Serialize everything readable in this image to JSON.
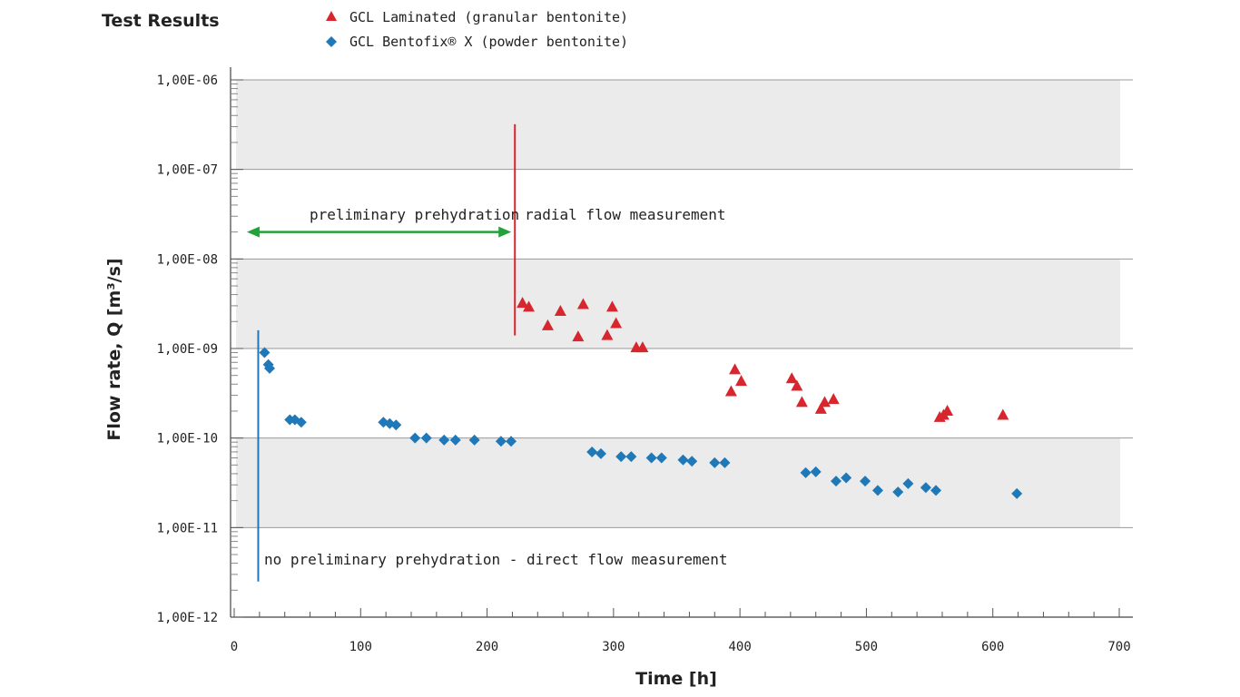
{
  "chart_data": {
    "type": "scatter",
    "title": "Test Results",
    "xlabel": "Time [h]",
    "ylabel": "Flow rate, Q [m³/s]",
    "xlim": [
      0,
      700
    ],
    "ylim_log10": [
      -12,
      -6
    ],
    "x_ticks": [
      0,
      100,
      200,
      300,
      400,
      500,
      600,
      700
    ],
    "y_ticks": [
      {
        "exp": -6,
        "label": "1,00E-06"
      },
      {
        "exp": -7,
        "label": "1,00E-07"
      },
      {
        "exp": -8,
        "label": "1,00E-08"
      },
      {
        "exp": -9,
        "label": "1,00E-09"
      },
      {
        "exp": -10,
        "label": "1,00E-10"
      },
      {
        "exp": -11,
        "label": "1,00E-11"
      },
      {
        "exp": -12,
        "label": "1,00E-12"
      }
    ],
    "grid": true,
    "legend_position": "top",
    "colors": {
      "laminated": "#d7262d",
      "bentofix": "#1f78b8",
      "arrow": "#22a33a",
      "band": "#ebebeb",
      "gridline": "#9a9a9a"
    },
    "series": [
      {
        "name": "GCL Laminated (granular bentonite)",
        "marker": "triangle",
        "color": "#d7262d",
        "points": [
          [
            228,
            3.2e-09
          ],
          [
            233,
            2.9e-09
          ],
          [
            248,
            1.8e-09
          ],
          [
            258,
            2.6e-09
          ],
          [
            272,
            1.35e-09
          ],
          [
            276,
            3.1e-09
          ],
          [
            295,
            1.4e-09
          ],
          [
            299,
            2.9e-09
          ],
          [
            302,
            1.9e-09
          ],
          [
            318,
            1.02e-09
          ],
          [
            323,
            1.02e-09
          ],
          [
            393,
            3.3e-10
          ],
          [
            396,
            5.8e-10
          ],
          [
            401,
            4.3e-10
          ],
          [
            441,
            4.6e-10
          ],
          [
            445,
            3.8e-10
          ],
          [
            449,
            2.5e-10
          ],
          [
            464,
            2.1e-10
          ],
          [
            467,
            2.5e-10
          ],
          [
            474,
            2.7e-10
          ],
          [
            558,
            1.7e-10
          ],
          [
            561,
            1.8e-10
          ],
          [
            564,
            2e-10
          ],
          [
            608,
            1.8e-10
          ]
        ]
      },
      {
        "name": "GCL Bentofix® X (powder bentonite)",
        "marker": "diamond",
        "color": "#1f78b8",
        "points": [
          [
            24,
            9e-10
          ],
          [
            27,
            6.6e-10
          ],
          [
            28,
            6e-10
          ],
          [
            44,
            1.6e-10
          ],
          [
            48,
            1.6e-10
          ],
          [
            53,
            1.5e-10
          ],
          [
            118,
            1.5e-10
          ],
          [
            123,
            1.45e-10
          ],
          [
            128,
            1.4e-10
          ],
          [
            143,
            1e-10
          ],
          [
            152,
            1e-10
          ],
          [
            166,
            9.5e-11
          ],
          [
            175,
            9.5e-11
          ],
          [
            190,
            9.5e-11
          ],
          [
            211,
            9.2e-11
          ],
          [
            219,
            9.2e-11
          ],
          [
            283,
            7e-11
          ],
          [
            290,
            6.7e-11
          ],
          [
            306,
            6.2e-11
          ],
          [
            314,
            6.2e-11
          ],
          [
            330,
            6e-11
          ],
          [
            338,
            6e-11
          ],
          [
            355,
            5.7e-11
          ],
          [
            362,
            5.5e-11
          ],
          [
            380,
            5.3e-11
          ],
          [
            388,
            5.3e-11
          ],
          [
            452,
            4.1e-11
          ],
          [
            460,
            4.2e-11
          ],
          [
            476,
            3.3e-11
          ],
          [
            484,
            3.6e-11
          ],
          [
            499,
            3.3e-11
          ],
          [
            509,
            2.6e-11
          ],
          [
            525,
            2.5e-11
          ],
          [
            533,
            3.1e-11
          ],
          [
            547,
            2.8e-11
          ],
          [
            555,
            2.6e-11
          ],
          [
            619,
            2.4e-11
          ]
        ]
      }
    ],
    "annotations": {
      "arrow_label": "preliminary prehydration",
      "arrow_x_range": [
        10,
        222
      ],
      "arrow_y": 2e-08,
      "red_line": {
        "x": 222,
        "y_range": [
          1.4e-09,
          3.2e-07
        ],
        "label": "radial flow measurement"
      },
      "blue_line": {
        "x": 19,
        "y_range": [
          2.5e-12,
          1.6e-09
        ],
        "label": "no preliminary prehydration - direct flow measurement"
      }
    }
  }
}
